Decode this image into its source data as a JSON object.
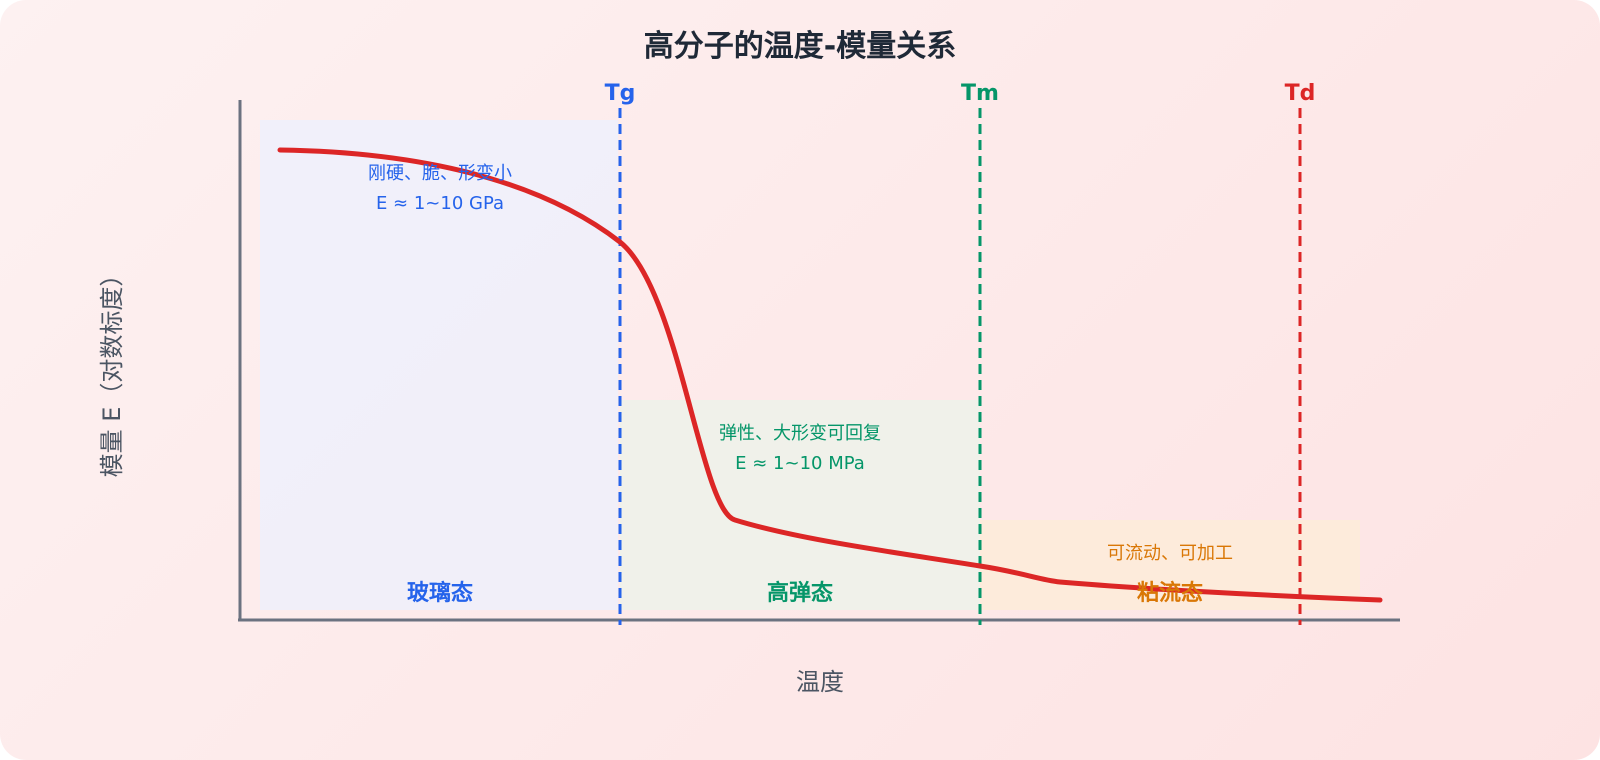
{
  "title": "高分子的温度-模量关系",
  "x_axis_label": "温度",
  "y_axis_label": "模量 E（对数标度）",
  "transitions": {
    "tg": "Tg",
    "tm": "Tm",
    "td": "Td"
  },
  "regions": {
    "glassy": {
      "name": "玻璃态",
      "desc": "刚硬、脆、形变小",
      "modulus": "E ≈ 1~10 GPa"
    },
    "rubbery": {
      "name": "高弹态",
      "desc": "弹性、大形变可回复",
      "modulus": "E ≈ 1~10 MPa"
    },
    "viscous": {
      "name": "粘流态",
      "desc": "可流动、可加工"
    }
  },
  "colors": {
    "glassy": "#2563eb",
    "rubbery": "#059669",
    "viscous": "#d97706",
    "curve": "#dc2626",
    "td_line": "#dc2626",
    "axis": "#6b7280",
    "title": "#1f2937"
  }
}
